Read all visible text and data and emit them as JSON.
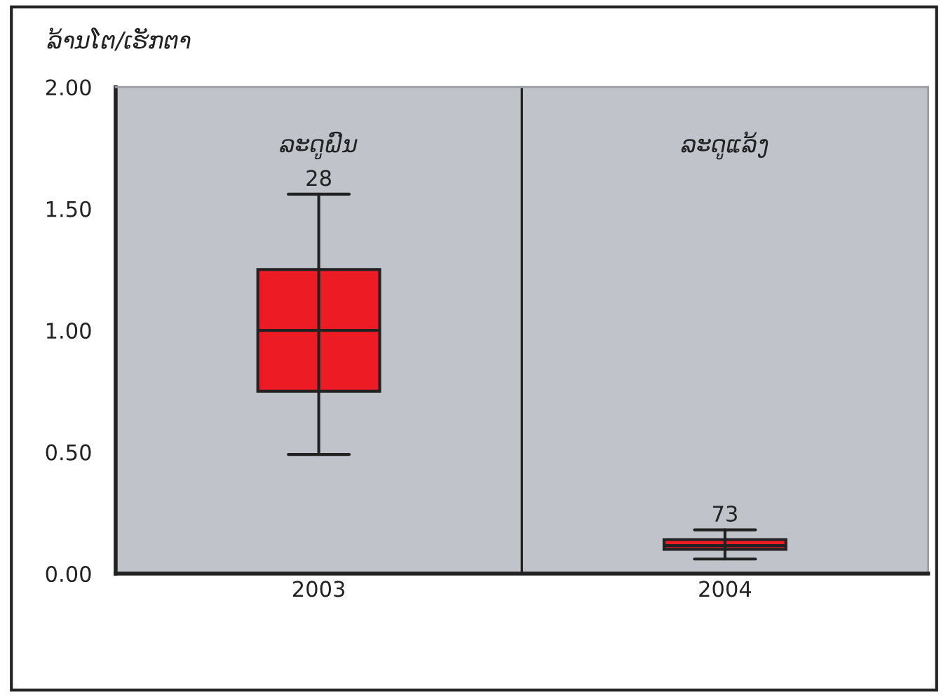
{
  "chart_data": {
    "type": "box",
    "ylabel": "ລ້ານໂຕ/ເຮັກຕາ",
    "categories": [
      "2003",
      "2004"
    ],
    "series": [
      {
        "color": "#ed1c24",
        "boxes": [
          {
            "low": 0.49,
            "q1": 0.75,
            "median": 1.0,
            "q3": 1.25,
            "high": 1.56
          },
          {
            "low": 0.06,
            "q1": 0.1,
            "median": 0.115,
            "q3": 0.14,
            "high": 0.18
          }
        ]
      }
    ],
    "ylim": [
      0,
      2
    ],
    "yticks": [
      {
        "value": 0,
        "label": "0.00"
      },
      {
        "value": 0.5,
        "label": "0.50"
      },
      {
        "value": 1,
        "label": "1.00"
      },
      {
        "value": 1.5,
        "label": "1.50"
      },
      {
        "value": 2,
        "label": "2.00"
      }
    ],
    "annotations": [
      "ລະດູຝົນ",
      "ລະດູແລ້ງ",
      {
        "text": "28",
        "x": "2003",
        "y": 1.56
      },
      {
        "text": "73",
        "x": "2004",
        "y": 0.18
      }
    ],
    "grid": false,
    "legend": false
  }
}
